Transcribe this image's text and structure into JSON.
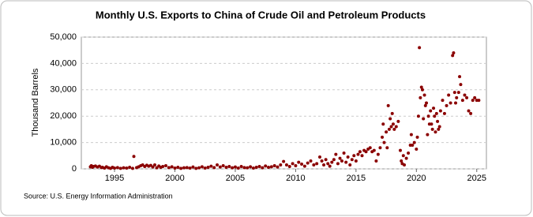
{
  "chart_data": {
    "type": "scatter",
    "title": "Monthly U.S. Exports to China of Crude Oil and Petroleum Products",
    "y_label": "Thousand Barrels",
    "source": "Source: U.S. Energy Information Administration",
    "color": "#8b0000",
    "grid": true,
    "xlim": [
      1992.25,
      2025.8
    ],
    "ylim": [
      0,
      50000
    ],
    "xticks": [
      1995,
      2000,
      2005,
      2010,
      2015,
      2020,
      2025
    ],
    "yticks": [
      0,
      {
        "value": 10000,
        "label": "10,000"
      },
      {
        "value": 20000,
        "label": "20,000"
      },
      {
        "value": 30000,
        "label": "30,000"
      },
      {
        "value": 40000,
        "label": "40,000"
      },
      {
        "value": 50000,
        "label": "50,000"
      }
    ],
    "x": [
      1993.0,
      1993.08,
      1993.17,
      1993.25,
      1993.42,
      1993.58,
      1993.75,
      1993.92,
      1994.0,
      1994.17,
      1994.33,
      1994.5,
      1994.67,
      1994.83,
      1995.0,
      1995.25,
      1995.5,
      1995.75,
      1996.0,
      1996.25,
      1996.5,
      1996.6,
      1996.83,
      1997.0,
      1997.17,
      1997.33,
      1997.5,
      1997.67,
      1997.83,
      1998.0,
      1998.17,
      1998.33,
      1998.5,
      1998.67,
      1998.83,
      1999.0,
      1999.25,
      1999.5,
      1999.75,
      2000.0,
      2000.25,
      2000.5,
      2000.75,
      2001.0,
      2001.25,
      2001.5,
      2001.75,
      2002.0,
      2002.25,
      2002.5,
      2002.75,
      2003.0,
      2003.25,
      2003.5,
      2003.75,
      2004.0,
      2004.25,
      2004.5,
      2004.75,
      2005.0,
      2005.25,
      2005.5,
      2005.75,
      2006.0,
      2006.25,
      2006.5,
      2006.75,
      2007.0,
      2007.25,
      2007.5,
      2007.75,
      2008.0,
      2008.25,
      2008.5,
      2008.75,
      2009.0,
      2009.25,
      2009.5,
      2009.75,
      2010.0,
      2010.25,
      2010.5,
      2010.75,
      2011.0,
      2011.25,
      2011.5,
      2011.75,
      2012.0,
      2012.17,
      2012.33,
      2012.5,
      2012.67,
      2012.83,
      2013.0,
      2013.17,
      2013.33,
      2013.5,
      2013.67,
      2013.83,
      2014.0,
      2014.17,
      2014.33,
      2014.5,
      2014.67,
      2014.83,
      2015.0,
      2015.17,
      2015.33,
      2015.5,
      2015.67,
      2015.83,
      2016.0,
      2016.17,
      2016.33,
      2016.5,
      2016.67,
      2016.83,
      2017.0,
      2017.17,
      2017.25,
      2017.33,
      2017.5,
      2017.58,
      2017.67,
      2017.75,
      2017.83,
      2017.92,
      2018.0,
      2018.08,
      2018.17,
      2018.33,
      2018.5,
      2018.67,
      2018.75,
      2018.83,
      2018.92,
      2019.0,
      2019.17,
      2019.33,
      2019.5,
      2019.58,
      2019.67,
      2019.83,
      2020.0,
      2020.08,
      2020.17,
      2020.25,
      2020.33,
      2020.42,
      2020.5,
      2020.58,
      2020.67,
      2020.75,
      2020.83,
      2020.92,
      2021.0,
      2021.08,
      2021.17,
      2021.25,
      2021.33,
      2021.42,
      2021.5,
      2021.58,
      2021.67,
      2021.75,
      2021.83,
      2021.92,
      2022.0,
      2022.17,
      2022.33,
      2022.5,
      2022.67,
      2022.83,
      2023.0,
      2023.08,
      2023.17,
      2023.25,
      2023.33,
      2023.5,
      2023.58,
      2023.67,
      2023.83,
      2024.0,
      2024.17,
      2024.33,
      2024.5,
      2024.67,
      2024.83,
      2025.0,
      2025.17
    ],
    "values": [
      800,
      1200,
      600,
      900,
      1100,
      700,
      1000,
      500,
      600,
      300,
      800,
      400,
      200,
      600,
      300,
      500,
      200,
      400,
      300,
      600,
      200,
      4700,
      500,
      800,
      1200,
      1500,
      900,
      1400,
      1000,
      1300,
      700,
      1500,
      400,
      1100,
      600,
      900,
      1200,
      500,
      800,
      300,
      600,
      200,
      400,
      500,
      300,
      700,
      200,
      400,
      800,
      300,
      600,
      1000,
      500,
      1500,
      700,
      1200,
      600,
      900,
      400,
      700,
      300,
      900,
      500,
      400,
      800,
      300,
      600,
      900,
      400,
      1100,
      600,
      800,
      1200,
      700,
      1500,
      2800,
      1500,
      900,
      2000,
      1200,
      2500,
      1800,
      1000,
      2200,
      3000,
      1500,
      2000,
      4500,
      3000,
      1500,
      3500,
      2000,
      1000,
      2500,
      3500,
      5500,
      2000,
      4000,
      3000,
      6000,
      2500,
      4500,
      1500,
      3500,
      5000,
      3000,
      5500,
      6500,
      5000,
      7000,
      6500,
      7500,
      8000,
      6500,
      7000,
      3000,
      5500,
      8000,
      12000,
      17000,
      10000,
      14000,
      8000,
      24000,
      15000,
      19000,
      16000,
      21000,
      17000,
      15000,
      16000,
      18000,
      7000,
      3000,
      2000,
      5000,
      1500,
      4000,
      6000,
      9000,
      13000,
      9000,
      10000,
      7500,
      12000,
      20000,
      46000,
      27000,
      31000,
      30000,
      19000,
      28000,
      24000,
      25000,
      13000,
      20000,
      17000,
      22000,
      17000,
      15000,
      23000,
      20000,
      14000,
      21000,
      18000,
      15000,
      16000,
      22000,
      26000,
      21000,
      24000,
      28000,
      25000,
      43000,
      44000,
      29000,
      25000,
      27000,
      29000,
      35000,
      32000,
      26000,
      28000,
      27000,
      22000,
      21000,
      26000,
      27000,
      26000,
      26000
    ]
  }
}
